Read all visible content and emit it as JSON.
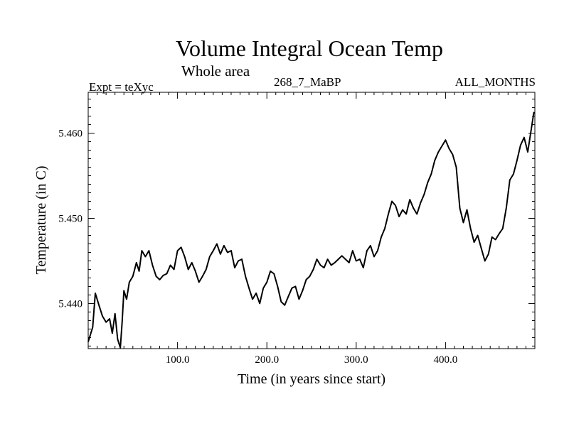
{
  "header": {
    "title": "Volume Integral Ocean Temp",
    "subtitle": "Whole area",
    "experiment": "Expt = teXyc",
    "run_id": "268_7_MaBP",
    "months": "ALL_MONTHS"
  },
  "chart_data": {
    "type": "line",
    "title": "Volume Integral Ocean Temp",
    "subtitle": "Whole area",
    "xlabel": "Time (in years since start)",
    "ylabel": "Temperature (in C)",
    "xlim": [
      0,
      500
    ],
    "ylim": [
      5.4347,
      5.4648
    ],
    "x_ticks": [
      100,
      200,
      300,
      400
    ],
    "x_tick_labels": [
      "100.0",
      "200.0",
      "300.0",
      "400.0"
    ],
    "y_ticks": [
      5.44,
      5.45,
      5.46
    ],
    "y_tick_labels": [
      "5.440",
      "5.450",
      "5.460"
    ],
    "grid": false,
    "series": [
      {
        "color": "#000000",
        "x": [
          0,
          5,
          8,
          12,
          16,
          20,
          24,
          27,
          30,
          33,
          36,
          38,
          40,
          43,
          46,
          50,
          54,
          57,
          60,
          64,
          68,
          72,
          76,
          80,
          84,
          88,
          92,
          96,
          100,
          104,
          108,
          112,
          116,
          120,
          124,
          128,
          132,
          136,
          140,
          144,
          148,
          152,
          156,
          160,
          164,
          168,
          172,
          176,
          180,
          184,
          188,
          192,
          196,
          200,
          204,
          208,
          212,
          216,
          220,
          224,
          228,
          232,
          236,
          240,
          244,
          248,
          252,
          256,
          260,
          264,
          268,
          272,
          276,
          280,
          284,
          288,
          292,
          296,
          300,
          304,
          308,
          312,
          316,
          320,
          324,
          328,
          332,
          336,
          340,
          344,
          348,
          352,
          356,
          360,
          364,
          368,
          372,
          376,
          380,
          384,
          388,
          392,
          396,
          400,
          404,
          408,
          412,
          416,
          420,
          424,
          428,
          432,
          436,
          440,
          444,
          448,
          452,
          456,
          460,
          464,
          468,
          472,
          476,
          480,
          484,
          488,
          492,
          496,
          499
        ],
        "values": [
          5.4355,
          5.4372,
          5.4412,
          5.4398,
          5.4385,
          5.4378,
          5.4382,
          5.4365,
          5.4388,
          5.4358,
          5.4348,
          5.4378,
          5.4415,
          5.4405,
          5.4425,
          5.4432,
          5.4448,
          5.4438,
          5.4462,
          5.4455,
          5.4462,
          5.4445,
          5.4432,
          5.4428,
          5.4433,
          5.4435,
          5.4445,
          5.444,
          5.4462,
          5.4466,
          5.4455,
          5.444,
          5.4448,
          5.4438,
          5.4425,
          5.4432,
          5.444,
          5.4455,
          5.4462,
          5.447,
          5.4458,
          5.4468,
          5.446,
          5.4462,
          5.4442,
          5.445,
          5.4452,
          5.4432,
          5.4418,
          5.4405,
          5.4412,
          5.44,
          5.4418,
          5.4425,
          5.4438,
          5.4435,
          5.442,
          5.4402,
          5.4398,
          5.4408,
          5.4418,
          5.442,
          5.4405,
          5.4415,
          5.4428,
          5.4432,
          5.444,
          5.4452,
          5.4445,
          5.4442,
          5.4452,
          5.4445,
          5.4448,
          5.4452,
          5.4456,
          5.4452,
          5.4448,
          5.4462,
          5.445,
          5.4452,
          5.4442,
          5.4462,
          5.4468,
          5.4455,
          5.4462,
          5.4478,
          5.4488,
          5.4505,
          5.452,
          5.4515,
          5.4502,
          5.451,
          5.4505,
          5.4522,
          5.4512,
          5.4505,
          5.4518,
          5.4528,
          5.4542,
          5.4552,
          5.4568,
          5.4578,
          5.4585,
          5.4592,
          5.4582,
          5.4575,
          5.456,
          5.4512,
          5.4495,
          5.451,
          5.4488,
          5.4472,
          5.448,
          5.4465,
          5.445,
          5.4458,
          5.4478,
          5.4475,
          5.4482,
          5.4488,
          5.4512,
          5.4545,
          5.4552,
          5.4568,
          5.4586,
          5.4595,
          5.4578,
          5.4605,
          5.4625
        ]
      }
    ]
  }
}
